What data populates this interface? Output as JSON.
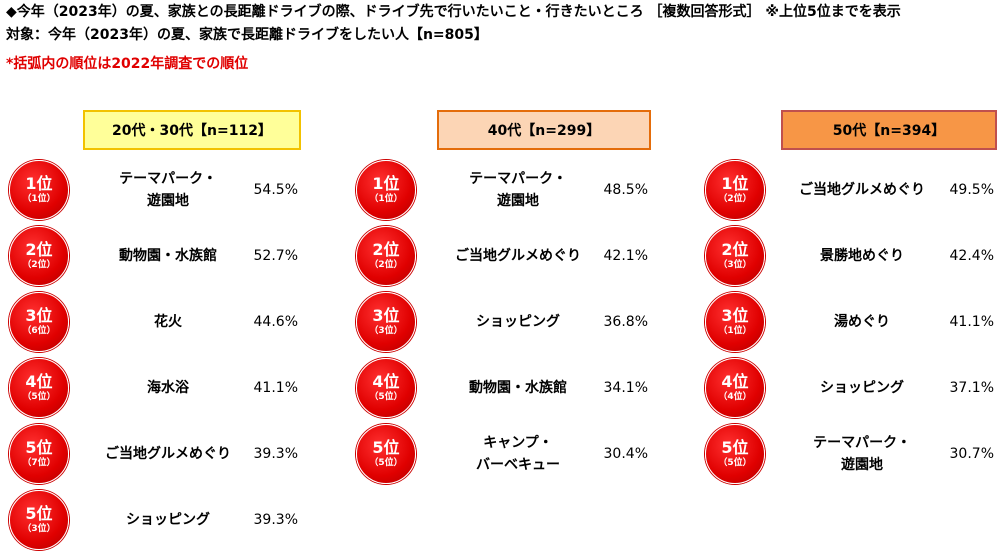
{
  "header": {
    "line1": "◆今年（2023年）の夏、家族との長距離ドライブの際、ドライブ先で行いたいこと・行きたいところ ［複数回答形式］ ※上位5位までを表示",
    "line2": "対象：今年（2023年）の夏、家族で長距離ドライブをしたい人【n=805】",
    "note": "*括弧内の順位は2022年調査での順位"
  },
  "columns": [
    {
      "title": "20代・30代【n=112】",
      "items": [
        {
          "rank": "1位",
          "prev": "（1位）",
          "name": [
            "テーマパーク・",
            "遊園地"
          ],
          "pct": "54.5%"
        },
        {
          "rank": "2位",
          "prev": "（2位）",
          "name": [
            "動物園・水族館"
          ],
          "pct": "52.7%"
        },
        {
          "rank": "3位",
          "prev": "（6位）",
          "name": [
            "花火"
          ],
          "pct": "44.6%"
        },
        {
          "rank": "4位",
          "prev": "（5位）",
          "name": [
            "海水浴"
          ],
          "pct": "41.1%"
        },
        {
          "rank": "5位",
          "prev": "（7位）",
          "name": [
            "ご当地グルメめぐり"
          ],
          "pct": "39.3%"
        },
        {
          "rank": "5位",
          "prev": "（3位）",
          "name": [
            "ショッピング"
          ],
          "pct": "39.3%"
        }
      ]
    },
    {
      "title": "40代【n=299】",
      "items": [
        {
          "rank": "1位",
          "prev": "（1位）",
          "name": [
            "テーマパーク・",
            "遊園地"
          ],
          "pct": "48.5%"
        },
        {
          "rank": "2位",
          "prev": "（2位）",
          "name": [
            "ご当地グルメめぐり"
          ],
          "pct": "42.1%"
        },
        {
          "rank": "3位",
          "prev": "（3位）",
          "name": [
            "ショッピング"
          ],
          "pct": "36.8%"
        },
        {
          "rank": "4位",
          "prev": "（5位）",
          "name": [
            "動物園・水族館"
          ],
          "pct": "34.1%"
        },
        {
          "rank": "5位",
          "prev": "（5位）",
          "name": [
            "キャンプ・",
            "バーベキュー"
          ],
          "pct": "30.4%"
        }
      ]
    },
    {
      "title": "50代【n=394】",
      "items": [
        {
          "rank": "1位",
          "prev": "（2位）",
          "name": [
            "ご当地グルメめぐり"
          ],
          "pct": "49.5%"
        },
        {
          "rank": "2位",
          "prev": "（3位）",
          "name": [
            "景勝地めぐり"
          ],
          "pct": "42.4%"
        },
        {
          "rank": "3位",
          "prev": "（1位）",
          "name": [
            "湯めぐり"
          ],
          "pct": "41.1%"
        },
        {
          "rank": "4位",
          "prev": "（4位）",
          "name": [
            "ショッピング"
          ],
          "pct": "37.1%"
        },
        {
          "rank": "5位",
          "prev": "（5位）",
          "name": [
            "テーマパーク・",
            "遊園地"
          ],
          "pct": "30.7%"
        }
      ]
    }
  ]
}
